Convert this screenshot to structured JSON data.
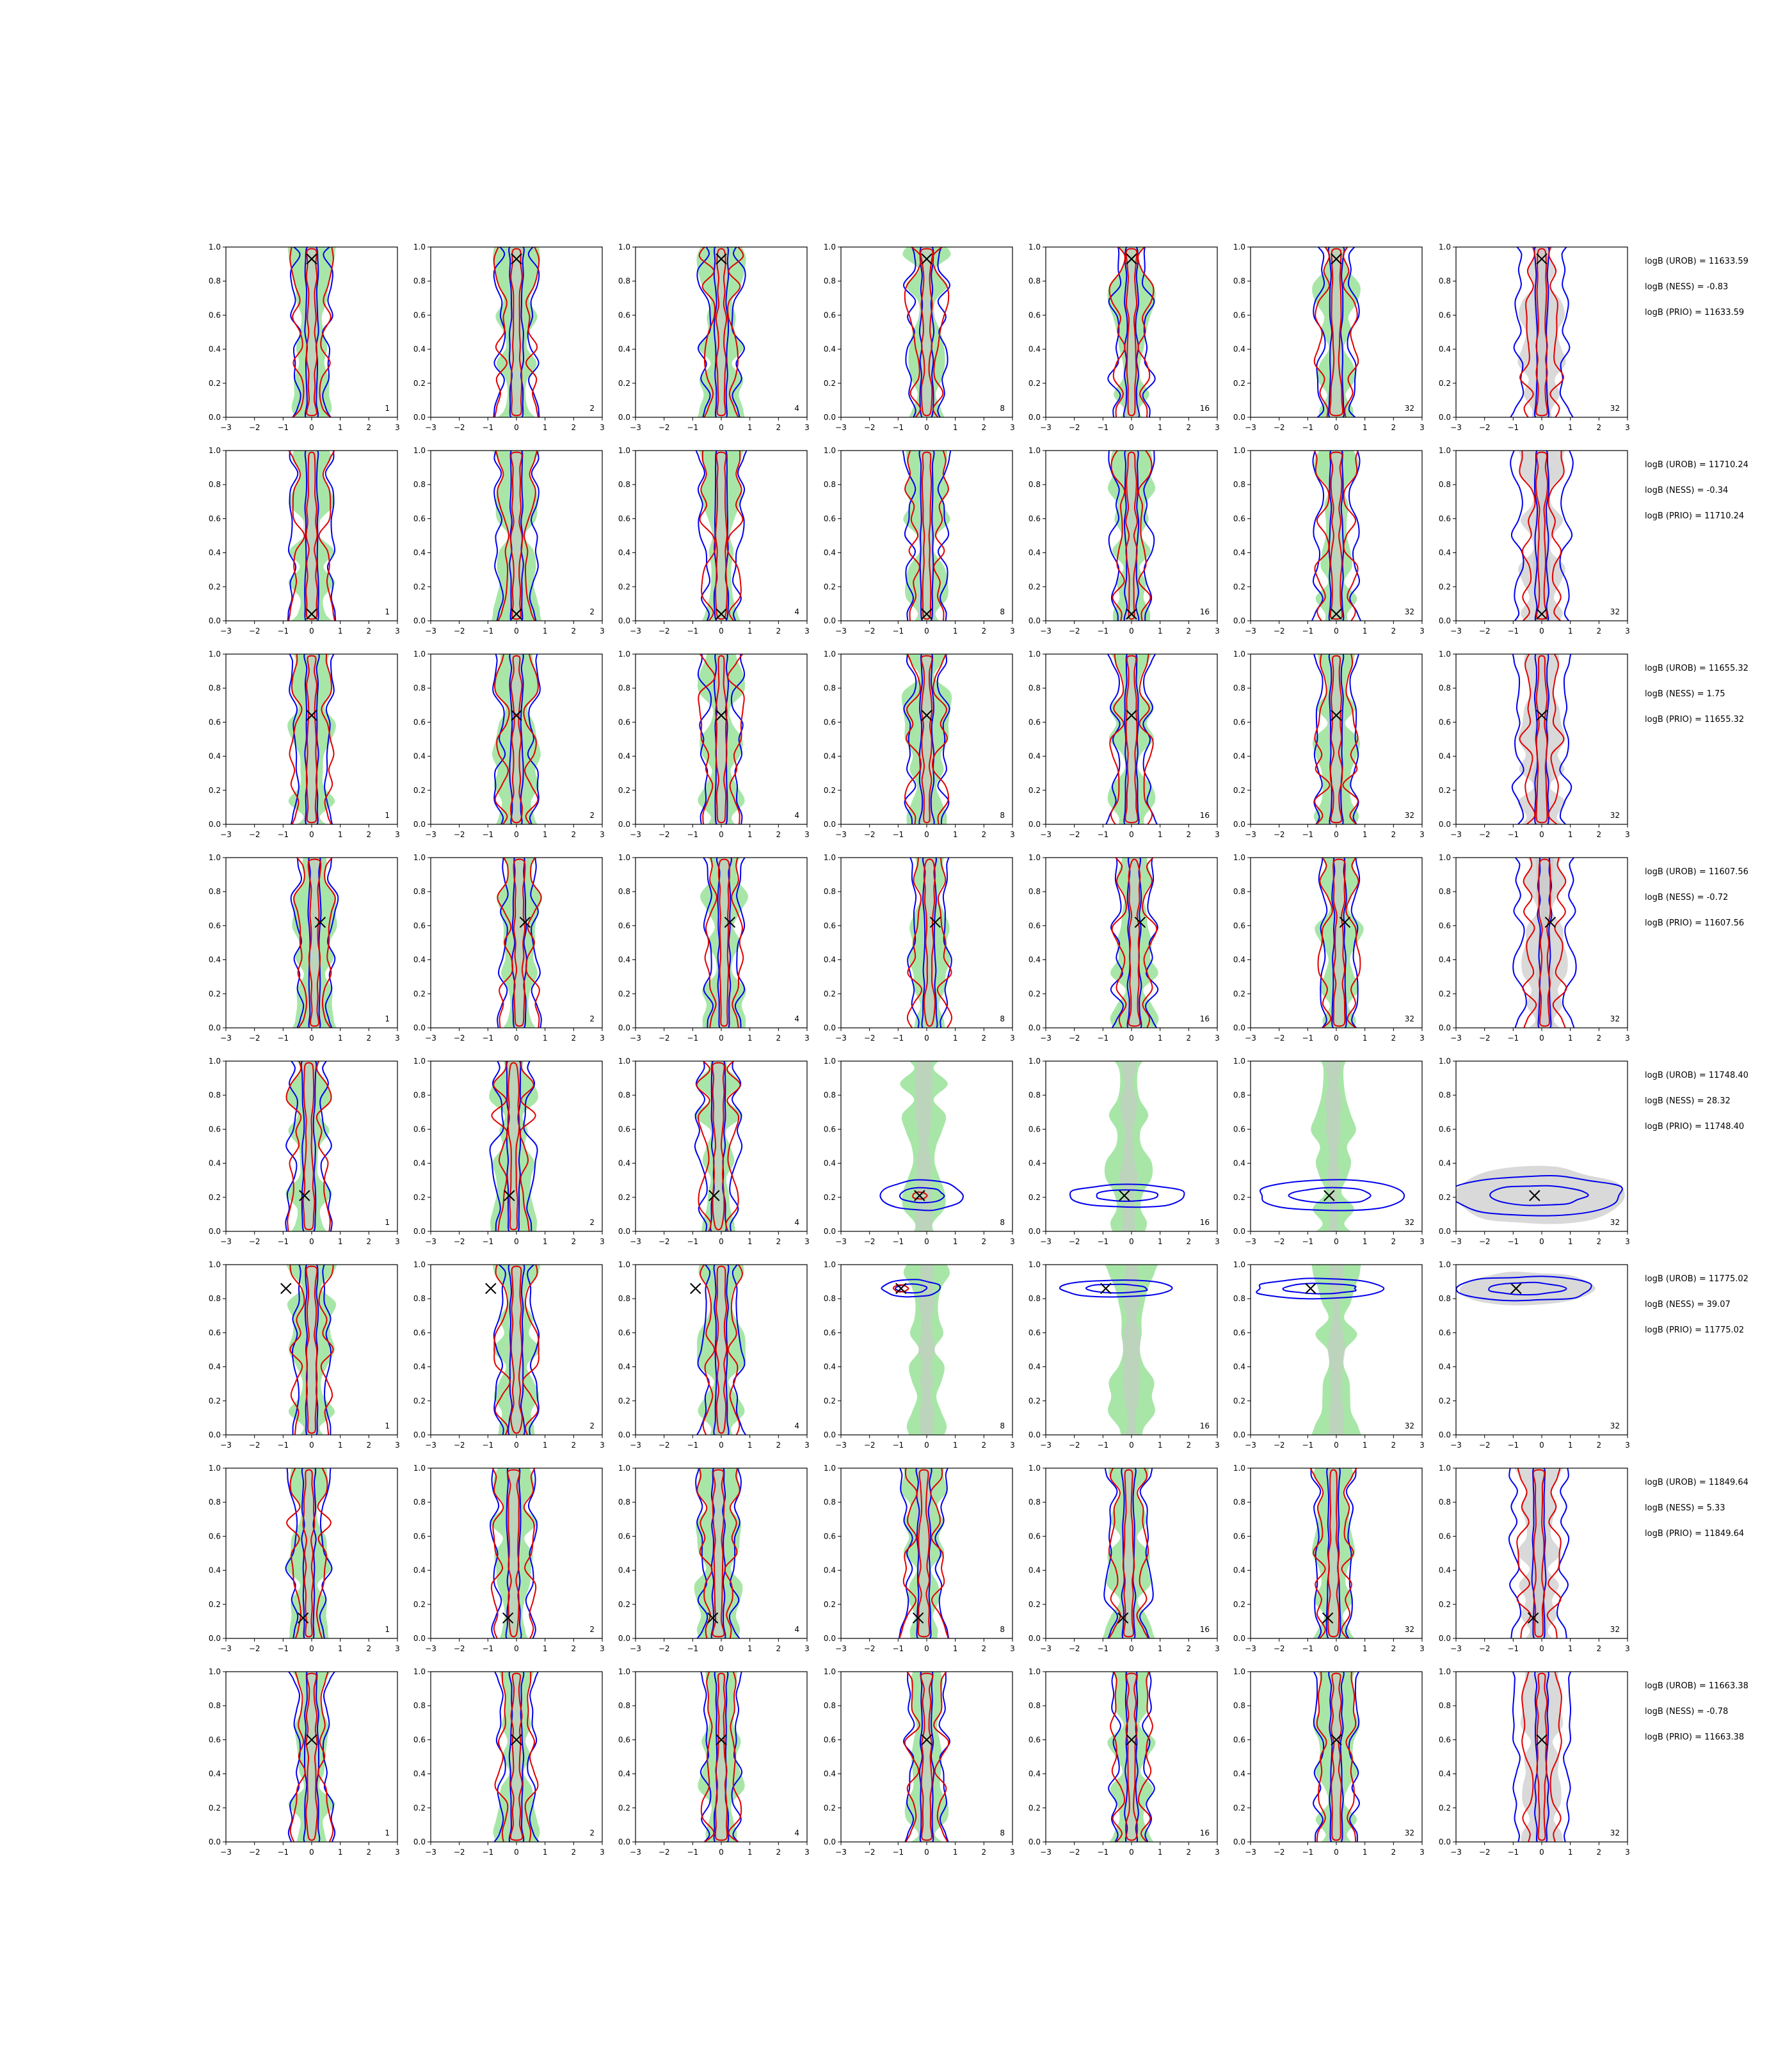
{
  "chart_data": {
    "type": "contour-grid",
    "x_ticks": [
      "−3",
      "−2",
      "−1",
      "0",
      "1",
      "2",
      "3"
    ],
    "y_ticks": [
      "0.0",
      "0.2",
      "0.4",
      "0.6",
      "0.8",
      "1.0"
    ],
    "xlim": [
      -3,
      3
    ],
    "ylim": [
      0,
      1
    ],
    "colors": {
      "fill": "#a8e6a8",
      "fill_inner": "#c8c8c8",
      "gray_fill": "#d9d9d9",
      "blue": "#0000ee",
      "red": "#e00000",
      "marker": "#000000"
    },
    "column_labels": [
      "1",
      "2",
      "4",
      "8",
      "16",
      "32",
      "32"
    ],
    "rows": [
      {
        "marker": [
          0.0,
          0.93
        ],
        "logB_UROB": "logB (UROB) = 11633.59",
        "logB_NESS": "logB (NESS) = -0.83",
        "logB_PRIO": "logB (PRIO) = 11633.59"
      },
      {
        "marker": [
          0.0,
          0.04
        ],
        "logB_UROB": "logB (UROB) = 11710.24",
        "logB_NESS": "logB (NESS) = -0.34",
        "logB_PRIO": "logB (PRIO) = 11710.24"
      },
      {
        "marker": [
          0.0,
          0.64
        ],
        "logB_UROB": "logB (UROB) = 11655.32",
        "logB_NESS": "logB (NESS) = 1.75",
        "logB_PRIO": "logB (PRIO) = 11655.32"
      },
      {
        "marker": [
          0.3,
          0.62
        ],
        "logB_UROB": "logB (UROB) = 11607.56",
        "logB_NESS": "logB (NESS) = -0.72",
        "logB_PRIO": "logB (PRIO) = 11607.56"
      },
      {
        "marker": [
          -0.25,
          0.21
        ],
        "logB_UROB": "logB (UROB) = 11748.40",
        "logB_NESS": "logB (NESS) = 28.32",
        "logB_PRIO": "logB (PRIO) = 11748.40"
      },
      {
        "marker": [
          -0.9,
          0.86
        ],
        "logB_UROB": "logB (UROB) = 11775.02",
        "logB_NESS": "logB (NESS) = 39.07",
        "logB_PRIO": "logB (PRIO) = 11775.02"
      },
      {
        "marker": [
          -0.3,
          0.12
        ],
        "logB_UROB": "logB (UROB) = 11849.64",
        "logB_NESS": "logB (NESS) = 5.33",
        "logB_PRIO": "logB (PRIO) = 11849.64"
      },
      {
        "marker": [
          0.0,
          0.6
        ],
        "logB_UROB": "logB (UROB) = 11663.38",
        "logB_NESS": "logB (NESS) = -0.78",
        "logB_PRIO": "logB (PRIO) = 11663.38"
      }
    ],
    "horizontal_panels": {
      "4": {
        "cols": [
          3,
          4,
          5,
          6
        ],
        "spread": [
          1.4,
          2.0,
          2.6,
          3.0
        ],
        "height": [
          0.09,
          0.07,
          0.09,
          0.12
        ]
      },
      "5": {
        "cols": [
          3,
          4,
          5,
          6
        ],
        "spread": [
          1.0,
          2.0,
          2.3,
          2.4
        ],
        "height": [
          0.05,
          0.05,
          0.06,
          0.07
        ]
      }
    }
  }
}
